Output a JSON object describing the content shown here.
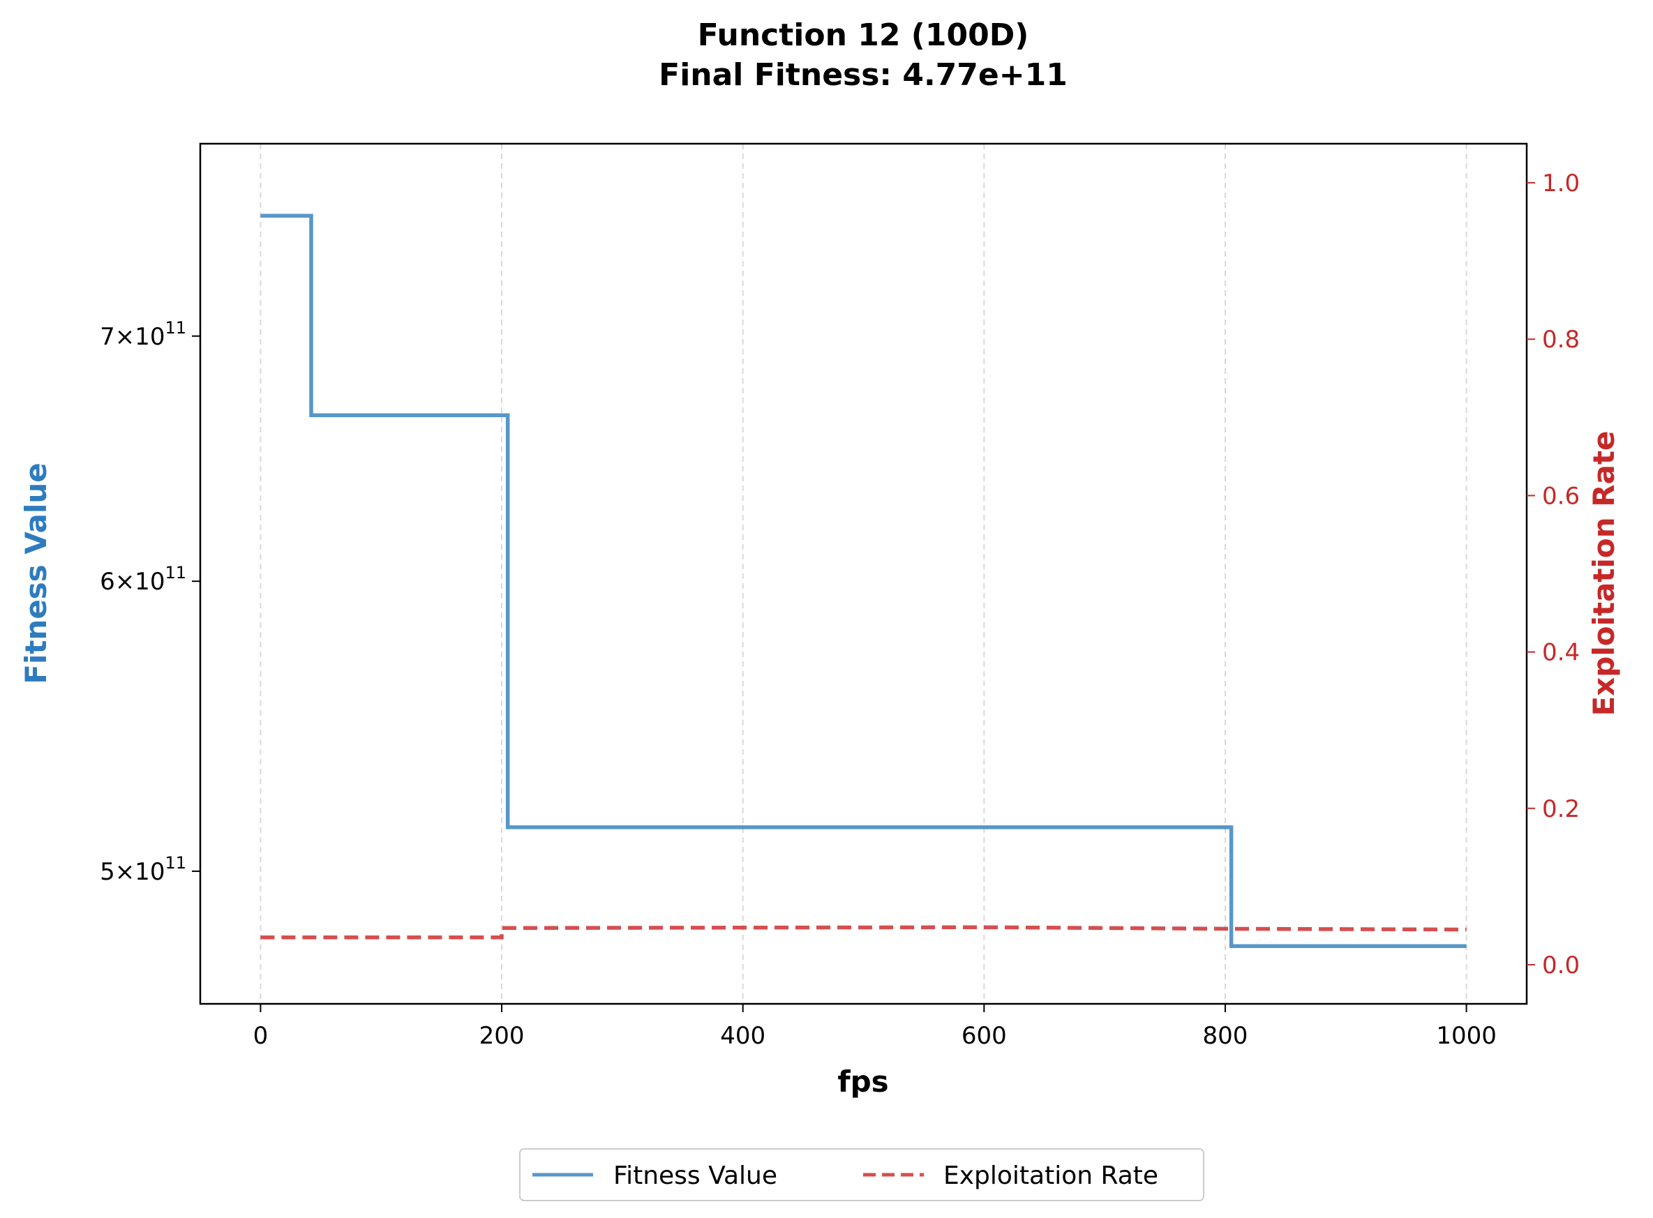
{
  "chart_data": {
    "type": "line",
    "title": "Function 12 (100D)",
    "subtitle": "Final Fitness: 4.77e+11",
    "xlabel": "fps",
    "ylabel_left": "Fitness Value",
    "ylabel_right": "Exploitation Rate",
    "xlim": [
      -50,
      1050
    ],
    "xticks": [
      0,
      200,
      400,
      600,
      800,
      1000
    ],
    "ylim_left": [
      460000000000.0,
      790000000000.0
    ],
    "yscale_left": "log",
    "yticks_left": [
      {
        "value": 500000000000.0,
        "mantissa": "5",
        "base": "10",
        "exp": "11"
      },
      {
        "value": 600000000000.0,
        "mantissa": "6",
        "base": "10",
        "exp": "11"
      },
      {
        "value": 700000000000.0,
        "mantissa": "7",
        "base": "10",
        "exp": "11"
      }
    ],
    "ylim_right": [
      -0.05,
      1.05
    ],
    "yticks_right": [
      "0.0",
      "0.2",
      "0.4",
      "0.6",
      "0.8",
      "1.0"
    ],
    "grid": "x-dashed",
    "legend_position": "bottom-center",
    "series": [
      {
        "name": "Fitness Value",
        "axis": "left",
        "style": "solid",
        "color": "#3a85c0",
        "x": [
          0,
          42,
          42,
          205,
          205,
          805,
          805,
          1000
        ],
        "y": [
          755000000000.0,
          755000000000.0,
          666000000000.0,
          666000000000.0,
          514000000000.0,
          514000000000.0,
          477000000000.0,
          477000000000.0
        ]
      },
      {
        "name": "Exploitation Rate",
        "axis": "right",
        "style": "dashed",
        "color": "#d23b3b",
        "x": [
          0,
          200,
          200,
          600,
          800,
          1000
        ],
        "y": [
          0.035,
          0.035,
          0.047,
          0.048,
          0.046,
          0.045
        ]
      }
    ]
  },
  "colors": {
    "left_axis_label": "#2e7bbf",
    "right_axis": "#c62828"
  }
}
